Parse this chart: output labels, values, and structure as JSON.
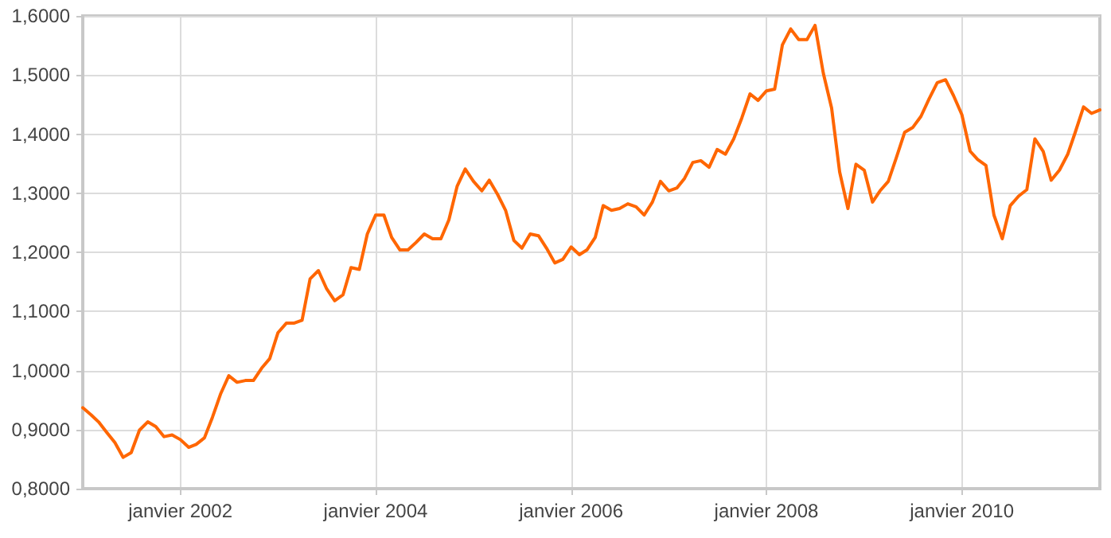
{
  "chart_data": {
    "type": "line",
    "color": "#ff6600",
    "marker": "none",
    "line_style": "solid",
    "grid": true,
    "x": [
      "2001-01",
      "2001-02",
      "2001-03",
      "2001-04",
      "2001-05",
      "2001-06",
      "2001-07",
      "2001-08",
      "2001-09",
      "2001-10",
      "2001-11",
      "2001-12",
      "2002-01",
      "2002-02",
      "2002-03",
      "2002-04",
      "2002-05",
      "2002-06",
      "2002-07",
      "2002-08",
      "2002-09",
      "2002-10",
      "2002-11",
      "2002-12",
      "2003-01",
      "2003-02",
      "2003-03",
      "2003-04",
      "2003-05",
      "2003-06",
      "2003-07",
      "2003-08",
      "2003-09",
      "2003-10",
      "2003-11",
      "2003-12",
      "2004-01",
      "2004-02",
      "2004-03",
      "2004-04",
      "2004-05",
      "2004-06",
      "2004-07",
      "2004-08",
      "2004-09",
      "2004-10",
      "2004-11",
      "2004-12",
      "2005-01",
      "2005-02",
      "2005-03",
      "2005-04",
      "2005-05",
      "2005-06",
      "2005-07",
      "2005-08",
      "2005-09",
      "2005-10",
      "2005-11",
      "2005-12",
      "2006-01",
      "2006-02",
      "2006-03",
      "2006-04",
      "2006-05",
      "2006-06",
      "2006-07",
      "2006-08",
      "2006-09",
      "2006-10",
      "2006-11",
      "2006-12",
      "2007-01",
      "2007-02",
      "2007-03",
      "2007-04",
      "2007-05",
      "2007-06",
      "2007-07",
      "2007-08",
      "2007-09",
      "2007-10",
      "2007-11",
      "2007-12",
      "2008-01",
      "2008-02",
      "2008-03",
      "2008-04",
      "2008-05",
      "2008-06",
      "2008-07",
      "2008-08",
      "2008-09",
      "2008-10",
      "2008-11",
      "2008-12",
      "2009-01",
      "2009-02",
      "2009-03",
      "2009-04",
      "2009-05",
      "2009-06",
      "2009-07",
      "2009-08",
      "2009-09",
      "2009-10",
      "2009-11",
      "2009-12",
      "2010-01",
      "2010-02",
      "2010-03",
      "2010-04",
      "2010-05",
      "2010-06",
      "2010-07",
      "2010-08",
      "2010-09",
      "2010-10",
      "2010-11",
      "2010-12",
      "2011-01",
      "2011-02",
      "2011-03",
      "2011-04",
      "2011-05",
      "2011-06"
    ],
    "values": [
      0.937,
      0.925,
      0.913,
      0.895,
      0.878,
      0.853,
      0.861,
      0.899,
      0.913,
      0.905,
      0.888,
      0.891,
      0.883,
      0.87,
      0.875,
      0.886,
      0.921,
      0.961,
      0.991,
      0.98,
      0.983,
      0.983,
      1.004,
      1.02,
      1.064,
      1.08,
      1.08,
      1.085,
      1.155,
      1.169,
      1.139,
      1.118,
      1.128,
      1.174,
      1.171,
      1.231,
      1.263,
      1.263,
      1.225,
      1.204,
      1.204,
      1.217,
      1.231,
      1.223,
      1.223,
      1.255,
      1.312,
      1.341,
      1.32,
      1.304,
      1.322,
      1.298,
      1.271,
      1.22,
      1.207,
      1.231,
      1.228,
      1.207,
      1.182,
      1.188,
      1.209,
      1.196,
      1.204,
      1.225,
      1.279,
      1.271,
      1.274,
      1.282,
      1.277,
      1.263,
      1.285,
      1.32,
      1.304,
      1.309,
      1.325,
      1.352,
      1.355,
      1.344,
      1.374,
      1.366,
      1.392,
      1.427,
      1.468,
      1.457,
      1.473,
      1.476,
      1.551,
      1.578,
      1.56,
      1.56,
      1.584,
      1.503,
      1.444,
      1.336,
      1.274,
      1.349,
      1.339,
      1.285,
      1.304,
      1.32,
      1.36,
      1.403,
      1.411,
      1.43,
      1.46,
      1.487,
      1.492,
      1.465,
      1.433,
      1.371,
      1.357,
      1.347,
      1.263,
      1.223,
      1.279,
      1.295,
      1.306,
      1.392,
      1.371,
      1.322,
      1.339,
      1.366,
      1.403,
      1.446,
      1.435,
      1.441
    ],
    "xlim": [
      "2001-01",
      "2011-06"
    ],
    "xticks": [
      {
        "value": "2002-01",
        "label": "janvier 2002"
      },
      {
        "value": "2004-01",
        "label": "janvier 2004"
      },
      {
        "value": "2006-01",
        "label": "janvier 2006"
      },
      {
        "value": "2008-01",
        "label": "janvier 2008"
      },
      {
        "value": "2010-01",
        "label": "janvier 2010"
      }
    ],
    "ylim": [
      0.8,
      1.6
    ],
    "yticks": [
      {
        "value": 0.8,
        "label": "0,8000"
      },
      {
        "value": 0.9,
        "label": "0,9000"
      },
      {
        "value": 1.0,
        "label": "1,0000"
      },
      {
        "value": 1.1,
        "label": "1,1000"
      },
      {
        "value": 1.2,
        "label": "1,2000"
      },
      {
        "value": 1.3,
        "label": "1,3000"
      },
      {
        "value": 1.4,
        "label": "1,4000"
      },
      {
        "value": 1.5,
        "label": "1,5000"
      },
      {
        "value": 1.6,
        "label": "1,6000"
      }
    ]
  }
}
